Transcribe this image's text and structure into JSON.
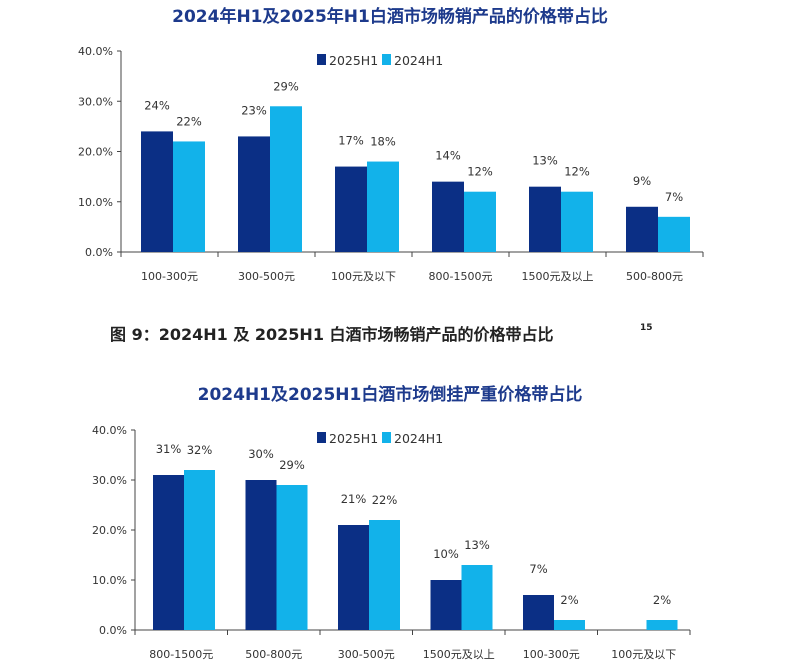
{
  "caption": {
    "text": "图 9：2024H1 及 2025H1 白酒市场畅销产品的价格带占比",
    "footnote": "15"
  },
  "colors": {
    "2025H1": "#0b2f85",
    "2024H1": "#12b2ea"
  },
  "chart_data": [
    {
      "type": "bar",
      "title": "2024年H1及2025年H1白酒市场畅销产品的价格带占比",
      "categories": [
        "100-300元",
        "300-500元",
        "100元及以下",
        "800-1500元",
        "1500元及以上",
        "500-800元"
      ],
      "series": [
        {
          "name": "2025H1",
          "values": [
            24,
            23,
            17,
            14,
            13,
            9
          ],
          "labels": [
            "24%",
            "23%",
            "17%",
            "14%",
            "13%",
            "9%"
          ]
        },
        {
          "name": "2024H1",
          "values": [
            22,
            29,
            18,
            12,
            12,
            7
          ],
          "labels": [
            "22%",
            "29%",
            "18%",
            "12%",
            "12%",
            "7%"
          ]
        }
      ],
      "ylim": [
        0,
        40
      ],
      "yticks": [
        "0.0%",
        "10.0%",
        "20.0%",
        "30.0%",
        "40.0%"
      ],
      "legend": "top-center",
      "grid": false
    },
    {
      "type": "bar",
      "title": "2024H1及2025H1白酒市场倒挂严重价格带占比",
      "categories": [
        "800-1500元",
        "500-800元",
        "300-500元",
        "1500元及以上",
        "100-300元",
        "100元及以下"
      ],
      "series": [
        {
          "name": "2025H1",
          "values": [
            31,
            30,
            21,
            10,
            7,
            null
          ],
          "labels": [
            "31%",
            "30%",
            "21%",
            "10%",
            "7%",
            ""
          ]
        },
        {
          "name": "2024H1",
          "values": [
            32,
            29,
            22,
            13,
            2,
            2
          ],
          "labels": [
            "32%",
            "29%",
            "22%",
            "13%",
            "2%",
            "2%"
          ]
        }
      ],
      "ylim": [
        0,
        40
      ],
      "yticks": [
        "0.0%",
        "10.0%",
        "20.0%",
        "30.0%",
        "40.0%"
      ],
      "legend": "top-center",
      "grid": false
    }
  ]
}
